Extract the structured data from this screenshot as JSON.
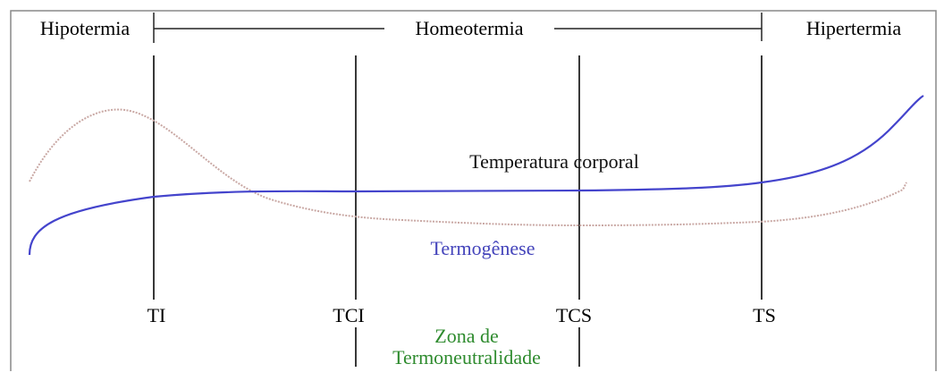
{
  "regions": [
    "Hipotermia",
    "Homeotermia",
    "Hipertermia"
  ],
  "thresholds": [
    "TI",
    "TCI",
    "TCS",
    "TS"
  ],
  "curves": {
    "body_temperature": "Temperatura corporal",
    "thermogenesis": "Termogênese"
  },
  "zone": [
    "Zona de",
    "Termoneutralidade"
  ]
}
